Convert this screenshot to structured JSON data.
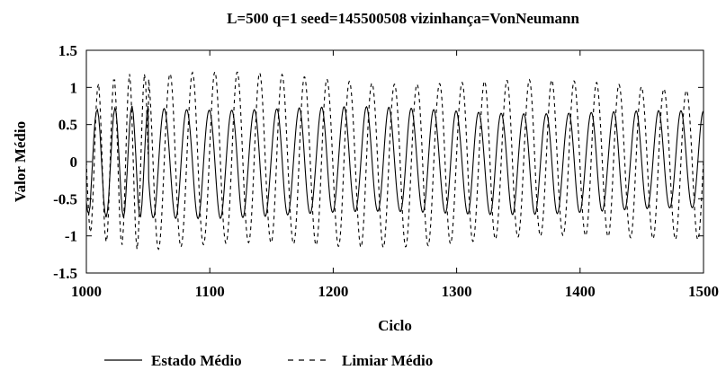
{
  "chart_data": {
    "type": "line",
    "title": "L=500  q=1  seed=145500508  vizinhança=VonNeumann",
    "xlabel": "Ciclo",
    "ylabel": "Valor Médio",
    "xlim": [
      1000,
      1500
    ],
    "ylim": [
      -1.5,
      1.5
    ],
    "x_ticks": [
      1000,
      1100,
      1200,
      1300,
      1400,
      1500
    ],
    "y_ticks": [
      -1.5,
      -1,
      -0.5,
      0,
      0.5,
      1,
      1.5
    ],
    "x_tick_labels": [
      "1000",
      "1100",
      "1200",
      "1300",
      "1400",
      "1500"
    ],
    "y_tick_labels": [
      "-1.5",
      "-1",
      "-0.5",
      "0",
      "0.5",
      "1",
      "1.5"
    ],
    "grid": false,
    "legend_position": "bottom",
    "series": [
      {
        "name": "Estado Médio",
        "style": "solid",
        "color": "#000000",
        "period": 18.2,
        "phase_start": 1004,
        "amplitude": [
          0.75,
          0.65
        ],
        "x": [
          1000,
          1001,
          1002,
          1003,
          1004,
          1005,
          1006,
          1007,
          1008,
          1009,
          1010,
          1011,
          1012,
          1013,
          1014,
          1015,
          1016,
          1017,
          1018,
          1019,
          1020,
          1021,
          1022,
          1023,
          1024,
          1025,
          1026,
          1027,
          1028,
          1029,
          1030,
          1031,
          1032,
          1033,
          1034,
          1035,
          1036,
          1037,
          1038,
          1039,
          1040,
          1041,
          1042,
          1043,
          1044,
          1045,
          1046,
          1047,
          1048,
          1049,
          1050
        ],
        "y": [
          -0.55,
          -0.67,
          -0.7,
          -0.6,
          -0.3,
          0.0,
          0.3,
          0.55,
          0.67,
          0.7,
          0.6,
          0.4,
          0.1,
          -0.2,
          -0.5,
          -0.68,
          -0.75,
          -0.68,
          -0.5,
          -0.2,
          0.1,
          0.4,
          0.62,
          0.72,
          0.68,
          0.5,
          0.2,
          -0.1,
          -0.42,
          -0.66,
          -0.75,
          -0.68,
          -0.45,
          -0.15,
          0.18,
          0.48,
          0.68,
          0.75,
          0.65,
          0.4,
          0.1,
          -0.25,
          -0.55,
          -0.72,
          -0.74,
          -0.58,
          -0.3,
          0.05,
          0.38,
          0.64,
          0.75
        ]
      },
      {
        "name": "Limiar Médio",
        "style": "dashed",
        "color": "#000000",
        "period": 18.2,
        "phase_lag": 4.5,
        "amplitude": [
          1.2,
          1.0
        ],
        "x": [
          1000,
          1001,
          1002,
          1003,
          1004,
          1005,
          1006,
          1007,
          1008,
          1009,
          1010,
          1011,
          1012,
          1013,
          1014,
          1015,
          1016,
          1017,
          1018,
          1019,
          1020,
          1021,
          1022,
          1023,
          1024,
          1025,
          1026,
          1027,
          1028,
          1029,
          1030,
          1031,
          1032,
          1033,
          1034,
          1035,
          1036,
          1037,
          1038,
          1039,
          1040,
          1041,
          1042,
          1043,
          1044,
          1045,
          1046,
          1047,
          1048,
          1049,
          1050
        ],
        "y": [
          0.0,
          -0.4,
          -0.75,
          -0.95,
          -0.9,
          -0.6,
          -0.2,
          0.3,
          0.75,
          1.0,
          1.05,
          0.8,
          0.4,
          -0.1,
          -0.6,
          -0.95,
          -1.08,
          -1.0,
          -0.65,
          -0.15,
          0.4,
          0.85,
          1.1,
          1.1,
          0.8,
          0.3,
          -0.25,
          -0.75,
          -1.05,
          -1.12,
          -0.9,
          -0.45,
          0.1,
          0.65,
          1.05,
          1.18,
          1.0,
          0.55,
          0.0,
          -0.55,
          -1.0,
          -1.18,
          -1.05,
          -0.6,
          -0.05,
          0.5,
          0.95,
          1.18,
          1.08,
          0.65,
          0.1
        ]
      }
    ]
  }
}
